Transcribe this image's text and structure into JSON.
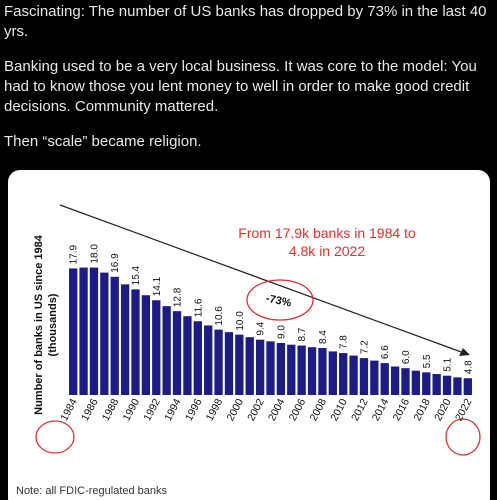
{
  "tweet": {
    "paragraphs": [
      "Fascinating: The number of US banks has dropped by 73% in the last 40 yrs.",
      "Banking used to be a very local business. It was core to the model: You had to know those you lent money to well in order to make good credit decisions. Community mattered.",
      "Then “scale” became religion."
    ]
  },
  "chart_data": {
    "type": "bar",
    "y_label": [
      "Number of banks in US since 1984",
      "(thousands)"
    ],
    "annotation": [
      "From 17.9k banks in 1984 to",
      "4.8k in 2022"
    ],
    "callout": "-73%",
    "note": "Note: all FDIC-regulated banks",
    "color": "#1c1c84",
    "ylim": [
      2.8,
      19.5
    ],
    "categories": [
      "1984",
      null,
      "1986",
      null,
      "1988",
      null,
      "1990",
      null,
      "1992",
      null,
      "1994",
      null,
      "1996",
      null,
      "1998",
      null,
      "2000",
      null,
      "2002",
      null,
      "2004",
      null,
      "2006",
      null,
      "2008",
      null,
      "2010",
      null,
      "2012",
      null,
      "2014",
      null,
      "2016",
      null,
      "2018",
      null,
      "2020",
      null,
      "2022"
    ],
    "values": [
      17.9,
      18.0,
      18.0,
      17.4,
      16.9,
      16.0,
      15.4,
      14.7,
      14.1,
      13.4,
      12.8,
      12.2,
      11.6,
      11.1,
      10.6,
      10.3,
      10.0,
      9.7,
      9.4,
      9.2,
      9.0,
      8.8,
      8.7,
      8.5,
      8.4,
      8.0,
      7.8,
      7.5,
      7.2,
      6.9,
      6.6,
      6.2,
      6.0,
      5.7,
      5.5,
      5.3,
      5.1,
      4.9,
      4.8
    ],
    "value_labels": [
      "17.9",
      null,
      "18.0",
      null,
      "16.9",
      null,
      "15.4",
      null,
      "14.1",
      null,
      "12.8",
      null,
      "11.6",
      null,
      "10.6",
      null,
      "10.0",
      null,
      "9.4",
      null,
      "9.0",
      null,
      "8.7",
      null,
      "8.4",
      null,
      "7.8",
      null,
      "7.2",
      null,
      "6.6",
      null,
      "6.0",
      null,
      "5.5",
      null,
      "5.1",
      null,
      "4.8"
    ]
  }
}
